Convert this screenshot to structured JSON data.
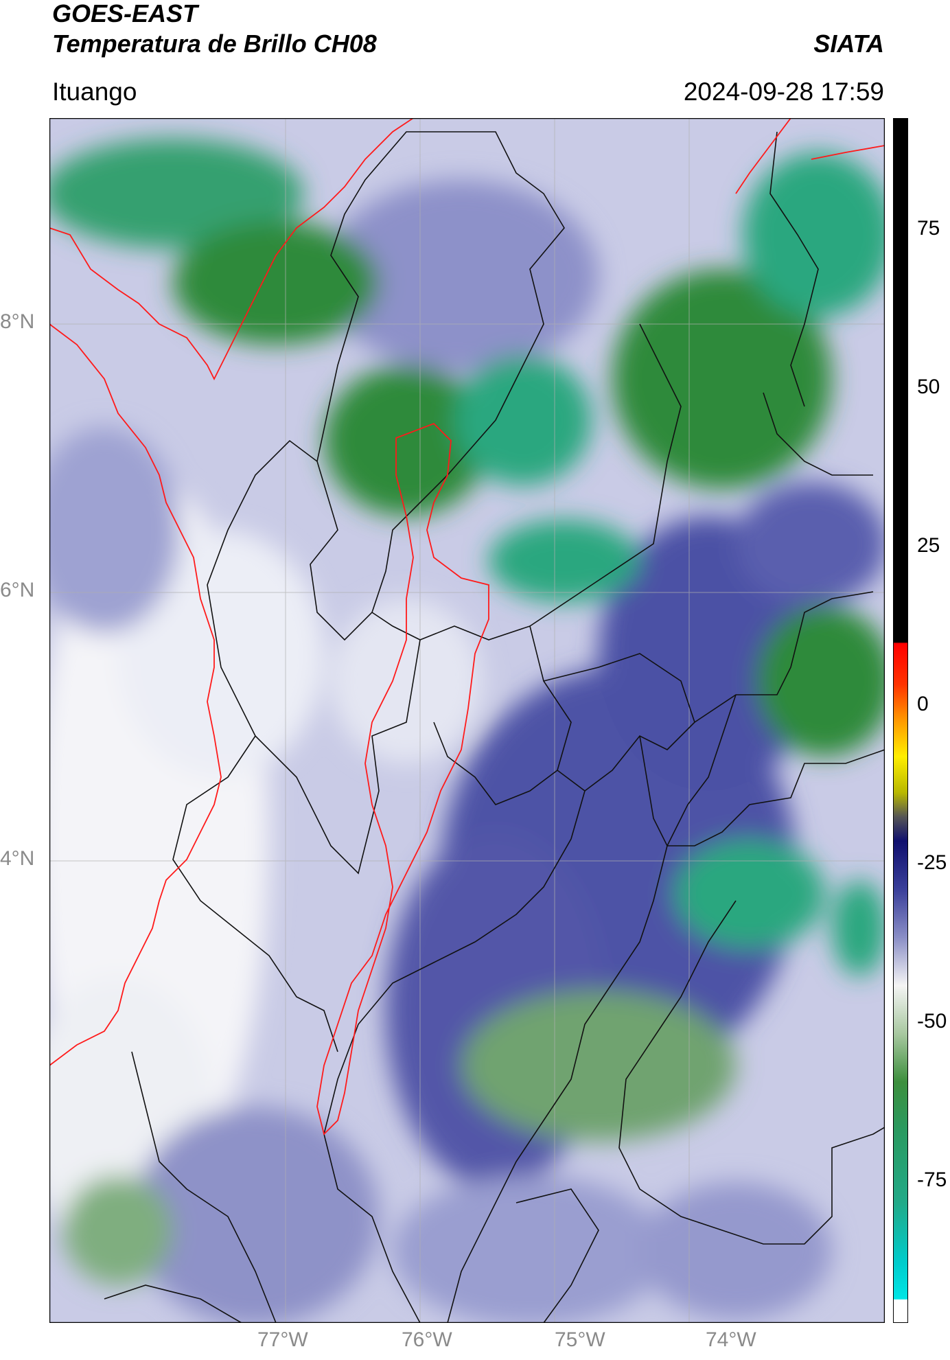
{
  "header": {
    "title_line1": "GOES-EAST",
    "title_line2": "Temperatura de Brillo CH08",
    "organization": "SIATA",
    "region": "Ituango",
    "timestamp": "2024-09-28 17:59"
  },
  "map": {
    "lat_labels": [
      "8°N",
      "6°N",
      "4°N"
    ],
    "lon_labels": [
      "77°W",
      "76°W",
      "75°W",
      "74°W"
    ]
  },
  "colorbar": {
    "tick_labels": [
      "75",
      "50",
      "25",
      "0",
      "-25",
      "-50",
      "-75"
    ],
    "colors": {
      "top": "#000000",
      "red": "#ff0000",
      "orange": "#ff9900",
      "yellow": "#ffee00",
      "dark_blue": "#1a1a7a",
      "blue": "#4a4fa8",
      "light": "#f2f2f2",
      "green": "#2f8a2f",
      "teal": "#22aa88",
      "cyan": "#00e5e5"
    }
  }
}
